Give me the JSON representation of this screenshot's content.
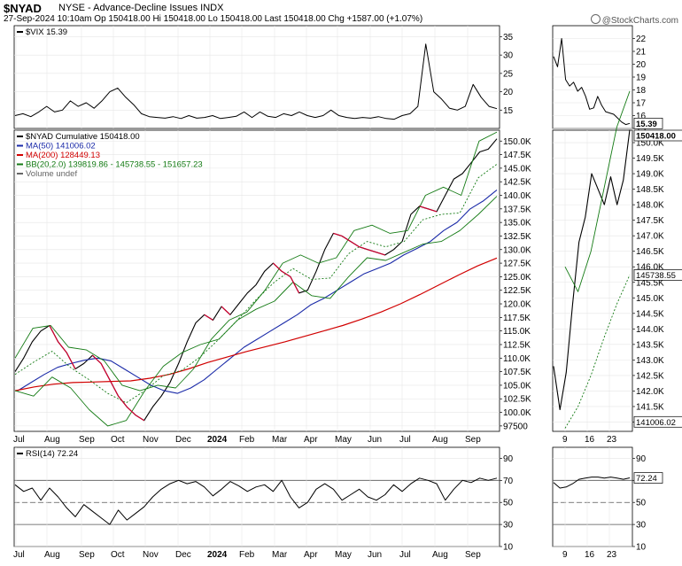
{
  "header": {
    "symbol": "$NYAD",
    "description": "NYSE - Advance-Decline Issues  INDX",
    "date_line": "27-Sep-2024 10:10am   Op 150418.00  Hi 150418.00  Lo 150418.00  Last 150418.00  Chg +1587.00 (+1.07%)",
    "brand": "@StockCharts.com"
  },
  "colors": {
    "price": "#000000",
    "down_bar": "#d00030",
    "ma50": "#1a2aa8",
    "ma200": "#d10000",
    "bollinger": "#137a13",
    "grid": "#e6e6e6"
  },
  "chart_data": [
    {
      "type": "line",
      "panel": "vix-main",
      "legend": [
        "$VIX 15.39"
      ],
      "ylim": [
        10,
        38
      ],
      "y_ticks": [
        "35",
        "30",
        "25",
        "20",
        "15"
      ],
      "x_labels": [
        "Jul",
        "Aug",
        "Sep",
        "Oct",
        "Nov",
        "Dec",
        "2024",
        "Feb",
        "Mar",
        "Apr",
        "May",
        "Jun",
        "Jul",
        "Aug",
        "Sep"
      ],
      "series": [
        {
          "name": "$VIX",
          "values": [
            13.5,
            14.0,
            13.2,
            14.5,
            16.0,
            14.5,
            15.0,
            17.5,
            16.0,
            17.0,
            15.5,
            17.5,
            20.0,
            21.0,
            18.5,
            16.5,
            14.0,
            13.2,
            13.0,
            12.8,
            13.2,
            12.7,
            13.5,
            12.8,
            13.0,
            13.5,
            12.7,
            13.0,
            13.3,
            14.5,
            13.0,
            14.5,
            13.3,
            13.0,
            14.0,
            13.5,
            14.5,
            13.5,
            13.0,
            13.5,
            15.0,
            13.5,
            13.0,
            12.7,
            13.0,
            12.8,
            13.2,
            12.7,
            12.5,
            13.5,
            14.0,
            16.0,
            33.0,
            20.0,
            18.0,
            15.5,
            15.0,
            16.0,
            22.0,
            18.5,
            16.0,
            15.39
          ]
        }
      ]
    },
    {
      "type": "line",
      "panel": "vix-zoom",
      "ylim": [
        15,
        23
      ],
      "y_ticks": [
        "22",
        "21",
        "20",
        "19",
        "18",
        "17",
        "16",
        "15"
      ],
      "value_tag": "15.39",
      "series": [
        {
          "name": "$VIX",
          "values": [
            20.6,
            19.8,
            22.0,
            18.8,
            18.3,
            18.6,
            17.9,
            18.2,
            17.5,
            16.5,
            16.6,
            17.5,
            16.8,
            16.3,
            16.2,
            16.1,
            15.8,
            15.5,
            15.3,
            15.39
          ]
        }
      ]
    },
    {
      "type": "line",
      "panel": "price-main",
      "legend": [
        "$NYAD Cumulative 150418.00",
        "MA(50) 141006.02",
        "MA(200) 128449.13",
        "BB(20,2.0) 139819.86 - 145738.55 - 151657.23",
        "Volume undef"
      ],
      "ylim": [
        96500,
        152000
      ],
      "y_ticks": [
        "150.0K",
        "147.5K",
        "145.0K",
        "142.5K",
        "140.0K",
        "137.5K",
        "135.0K",
        "132.5K",
        "130.0K",
        "127.5K",
        "125.0K",
        "122.5K",
        "120.0K",
        "117.5K",
        "115.0K",
        "112.5K",
        "110.0K",
        "107.5K",
        "105.0K",
        "102.5K",
        "100.0K",
        "97500"
      ],
      "x_labels": [
        "Jul",
        "Aug",
        "Sep",
        "Oct",
        "Nov",
        "Dec",
        "2024",
        "Feb",
        "Mar",
        "Apr",
        "May",
        "Jun",
        "Jul",
        "Aug",
        "Sep"
      ],
      "series": [
        {
          "name": "$NYAD Cumulative",
          "values": [
            107500,
            110000,
            113000,
            115000,
            116000,
            113000,
            111000,
            108000,
            109000,
            110500,
            109000,
            106000,
            103000,
            101000,
            99500,
            98500,
            101000,
            103000,
            105500,
            109000,
            113000,
            116500,
            118000,
            117000,
            119500,
            118000,
            120000,
            122000,
            123500,
            126000,
            127500,
            126000,
            125000,
            122000,
            122500,
            126000,
            130000,
            133000,
            132500,
            131500,
            130500,
            130000,
            129500,
            129000,
            130000,
            131500,
            136500,
            138000,
            137500,
            137000,
            140000,
            143000,
            144000,
            146000,
            148000,
            148500,
            150418
          ]
        },
        {
          "name": "MA(50)",
          "values": [
            104000,
            105500,
            107000,
            108300,
            109000,
            109600,
            110000,
            109500,
            108000,
            106500,
            105000,
            104000,
            103500,
            104500,
            106000,
            108000,
            110000,
            112000,
            113500,
            115000,
            116500,
            118000,
            119800,
            121000,
            122500,
            124000,
            125500,
            126500,
            127500,
            129000,
            130200,
            131500,
            133500,
            135000,
            137500,
            139000,
            141006
          ]
        },
        {
          "name": "MA(200)",
          "values": [
            104000,
            104700,
            105200,
            105500,
            105600,
            105700,
            105800,
            106300,
            107000,
            108000,
            109200,
            110200,
            111200,
            112100,
            113000,
            114000,
            115000,
            116000,
            117200,
            118500,
            120000,
            121700,
            123500,
            125300,
            127000,
            128449
          ]
        },
        {
          "name": "BB upper",
          "values": [
            110000,
            115500,
            116000,
            112000,
            111500,
            109500,
            105000,
            104000,
            105000,
            104500,
            108000,
            113500,
            117000,
            118500,
            122500,
            127500,
            129000,
            127500,
            128500,
            133500,
            134500,
            133000,
            133500,
            140000,
            141500,
            140000,
            150000,
            151657
          ]
        },
        {
          "name": "BB lower",
          "values": [
            104000,
            103000,
            106500,
            104500,
            100500,
            97500,
            98500,
            104000,
            108500,
            111000,
            112500,
            113500,
            117000,
            119000,
            120500,
            124000,
            121500,
            121000,
            125000,
            128500,
            128000,
            129500,
            131000,
            131500,
            133500,
            136500,
            139820
          ]
        }
      ]
    },
    {
      "type": "line",
      "panel": "price-zoom",
      "ylim": [
        140700,
        150400
      ],
      "y_ticks": [
        "150.0K",
        "149.5K",
        "149.0K",
        "148.5K",
        "148.0K",
        "147.5K",
        "147.0K",
        "146.5K",
        "146.0K",
        "145.5K",
        "145.0K",
        "144.5K",
        "144.0K",
        "143.5K",
        "143.0K",
        "142.5K",
        "142.0K",
        "141.5K",
        "141.0K"
      ],
      "x_labels": [
        "9",
        "16",
        "23"
      ],
      "value_tags": [
        "150418.00",
        "145738.55",
        "141006.02"
      ],
      "series": [
        {
          "name": "$NYAD Cumulative",
          "values": [
            142800,
            141400,
            142600,
            144800,
            146800,
            147600,
            149000,
            148500,
            148000,
            148900,
            148000,
            148800,
            150418
          ]
        },
        {
          "name": "BB upper",
          "values": [
            146000,
            145200,
            146500,
            148500,
            150500,
            151657
          ]
        },
        {
          "name": "BB middle",
          "values": [
            140800,
            141500,
            142500,
            143700,
            144800,
            145739
          ]
        }
      ]
    },
    {
      "type": "line",
      "panel": "rsi-main",
      "legend": [
        "RSI(14) 72.24"
      ],
      "ylim": [
        10,
        100
      ],
      "y_ticks": [
        "90",
        "70",
        "50",
        "30",
        "10"
      ],
      "x_labels": [
        "Jul",
        "Aug",
        "Sep",
        "Oct",
        "Nov",
        "Dec",
        "2024",
        "Feb",
        "Mar",
        "Apr",
        "May",
        "Jun",
        "Jul",
        "Aug",
        "Sep"
      ],
      "series": [
        {
          "name": "RSI(14)",
          "values": [
            66,
            60,
            63,
            52,
            63,
            55,
            45,
            37,
            48,
            42,
            36,
            30,
            43,
            34,
            40,
            46,
            55,
            62,
            67,
            70,
            67,
            69,
            64,
            56,
            62,
            69,
            65,
            60,
            64,
            66,
            60,
            70,
            55,
            45,
            50,
            62,
            67,
            62,
            52,
            57,
            62,
            55,
            52,
            57,
            66,
            60,
            67,
            72,
            70,
            67,
            52,
            62,
            70,
            68,
            72,
            70,
            72
          ]
        }
      ]
    },
    {
      "type": "line",
      "panel": "rsi-zoom",
      "ylim": [
        10,
        100
      ],
      "y_ticks": [
        "90",
        "70",
        "50",
        "30",
        "10"
      ],
      "x_labels": [
        "9",
        "16",
        "23"
      ],
      "value_tag": "72.24",
      "series": [
        {
          "name": "RSI(14)",
          "values": [
            68,
            63,
            64,
            67,
            71,
            72,
            73,
            73,
            72,
            73,
            72,
            71,
            72.24
          ]
        }
      ]
    }
  ]
}
